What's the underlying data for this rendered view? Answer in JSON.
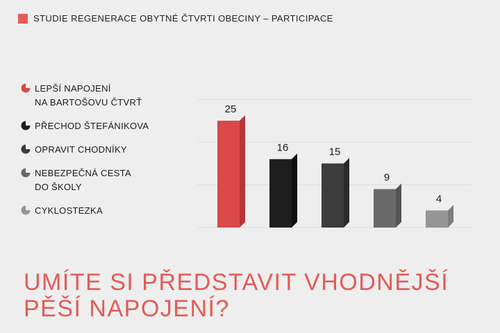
{
  "header": {
    "title": "STUDIE REGENERACE OBYTNÉ ČTVRTI OBECINY – PARTICIPACE",
    "accent_color": "#e25b57"
  },
  "question": "UMÍTE SI PŘEDSTAVIT VHODNĚJŠÍ\nPĚŠÍ NAPOJENÍ?",
  "chart_data": {
    "type": "bar",
    "categories": [
      "LEPŠÍ NAPOJENÍ\nNA BARTOŠOVU ČTVRŤ",
      "PŘECHOD ŠTEFÁNIKOVA",
      "OPRAVIT CHODNÍKY",
      "NEBEZPEČNÁ CESTA\nDO ŠKOLY",
      "CYKLOSTEZKA"
    ],
    "values": [
      25,
      16,
      15,
      9,
      4
    ],
    "colors": [
      "#d9494a",
      "#1e1e1e",
      "#3c3c3c",
      "#6a6a6a",
      "#959595"
    ],
    "side_colors": [
      "#b93535",
      "#0f0f0f",
      "#2a2a2a",
      "#545454",
      "#7e7e7e"
    ],
    "ylim": [
      0,
      37
    ],
    "grid": true,
    "legend": "left"
  }
}
